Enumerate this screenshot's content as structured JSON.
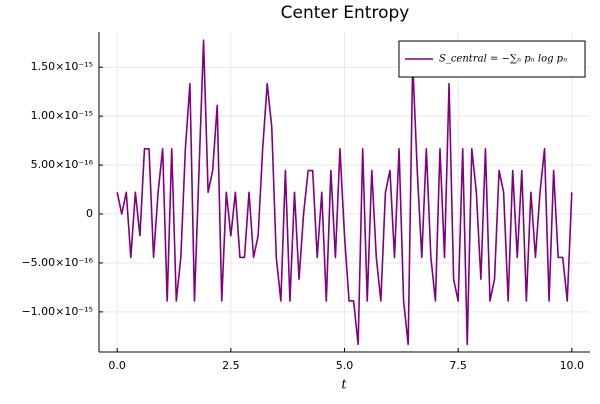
{
  "chart_data": {
    "type": "line",
    "title": "Center Entropy",
    "xlabel": "t",
    "x": [
      0,
      0.1,
      0.2,
      0.3,
      0.4,
      0.5,
      0.6,
      0.7,
      0.8,
      0.9,
      1,
      1.1,
      1.2,
      1.3,
      1.4,
      1.5,
      1.6,
      1.7,
      1.8,
      1.9,
      2,
      2.1,
      2.2,
      2.3,
      2.4,
      2.5,
      2.6,
      2.7,
      2.8,
      2.9,
      3,
      3.1,
      3.2,
      3.3,
      3.4,
      3.5,
      3.6,
      3.7,
      3.8,
      3.9,
      4,
      4.1,
      4.2,
      4.3,
      4.4,
      4.5,
      4.6,
      4.7,
      4.8,
      4.9,
      5,
      5.1,
      5.2,
      5.3,
      5.4,
      5.5,
      5.6,
      5.7,
      5.8,
      5.9,
      6,
      6.1,
      6.2,
      6.3,
      6.4,
      6.5,
      6.6,
      6.7,
      6.8,
      6.9,
      7,
      7.1,
      7.2,
      7.3,
      7.4,
      7.5,
      7.6,
      7.7,
      7.8,
      7.9,
      8,
      8.1,
      8.2,
      8.3,
      8.4,
      8.5,
      8.6,
      8.7,
      8.8,
      8.9,
      9,
      9.1,
      9.2,
      9.3,
      9.4,
      9.5,
      9.6,
      9.7,
      9.8,
      9.9,
      10
    ],
    "series": [
      {
        "name": "S_central = −∑ₙ pₙ log pₙ",
        "color": "#800080",
        "values": [
          2.22e-16,
          0,
          2.22e-16,
          -4.44e-16,
          2.22e-16,
          -2.22e-16,
          6.66e-16,
          6.66e-16,
          -4.44e-16,
          2.22e-16,
          6.66e-16,
          -8.88e-16,
          6.66e-16,
          -8.88e-16,
          -4.44e-16,
          6.66e-16,
          1.332e-15,
          -8.88e-16,
          4.44e-16,
          1.776e-15,
          2.22e-16,
          4.44e-16,
          1.11e-15,
          -8.88e-16,
          2.22e-16,
          -2.22e-16,
          2.22e-16,
          -4.44e-16,
          -4.44e-16,
          2.22e-16,
          -4.44e-16,
          -2.22e-16,
          6.66e-16,
          1.332e-15,
          8.88e-16,
          -4.44e-16,
          -8.88e-16,
          4.44e-16,
          -8.88e-16,
          2.22e-16,
          -6.66e-16,
          0,
          4.44e-16,
          4.44e-16,
          -4.44e-16,
          2.22e-16,
          -8.88e-16,
          4.44e-16,
          -4.44e-16,
          6.66e-16,
          -2.22e-16,
          -8.88e-16,
          -8.88e-16,
          -1.332e-15,
          6.66e-16,
          -8.88e-16,
          4.44e-16,
          -4.44e-16,
          -8.88e-16,
          2.22e-16,
          4.44e-16,
          -4.44e-16,
          6.66e-16,
          -8.88e-16,
          -1.332e-15,
          1.554e-15,
          4.44e-16,
          -4.44e-16,
          6.66e-16,
          -4.44e-16,
          -8.88e-16,
          6.66e-16,
          -4.44e-16,
          1.332e-15,
          -6.66e-16,
          -8.88e-16,
          6.66e-16,
          -1.332e-15,
          6.66e-16,
          2.22e-16,
          -6.66e-16,
          6.66e-16,
          -8.88e-16,
          -6.66e-16,
          4.44e-16,
          2.22e-16,
          -8.88e-16,
          4.44e-16,
          -4.44e-16,
          4.44e-16,
          -8.88e-16,
          2.22e-16,
          -4.44e-16,
          2.22e-16,
          6.66e-16,
          -8.88e-16,
          4.44e-16,
          -4.44e-16,
          -4.44e-16,
          -8.88e-16,
          2.22e-16
        ]
      }
    ],
    "xlim": [
      -0.4,
      10.4
    ],
    "xticks": [
      {
        "value": 0,
        "label": "0.0"
      },
      2.5,
      {
        "value": 5,
        "label": "5.0"
      },
      7.5,
      {
        "value": 10,
        "label": "10.0"
      }
    ],
    "ylim": [
      -1.41e-15,
      1.86e-15
    ],
    "yticks": [
      {
        "value": -1e-15,
        "label": "−1.00×10⁻¹⁵"
      },
      {
        "value": -5e-16,
        "label": "−5.00×10⁻¹⁶"
      },
      0,
      {
        "value": 5e-16,
        "label": "5.00×10⁻¹⁶"
      },
      {
        "value": 1e-15,
        "label": "1.00×10⁻¹⁵"
      },
      {
        "value": 1.5e-15,
        "label": "1.50×10⁻¹⁵"
      }
    ],
    "grid": true,
    "legend": "top-right"
  }
}
